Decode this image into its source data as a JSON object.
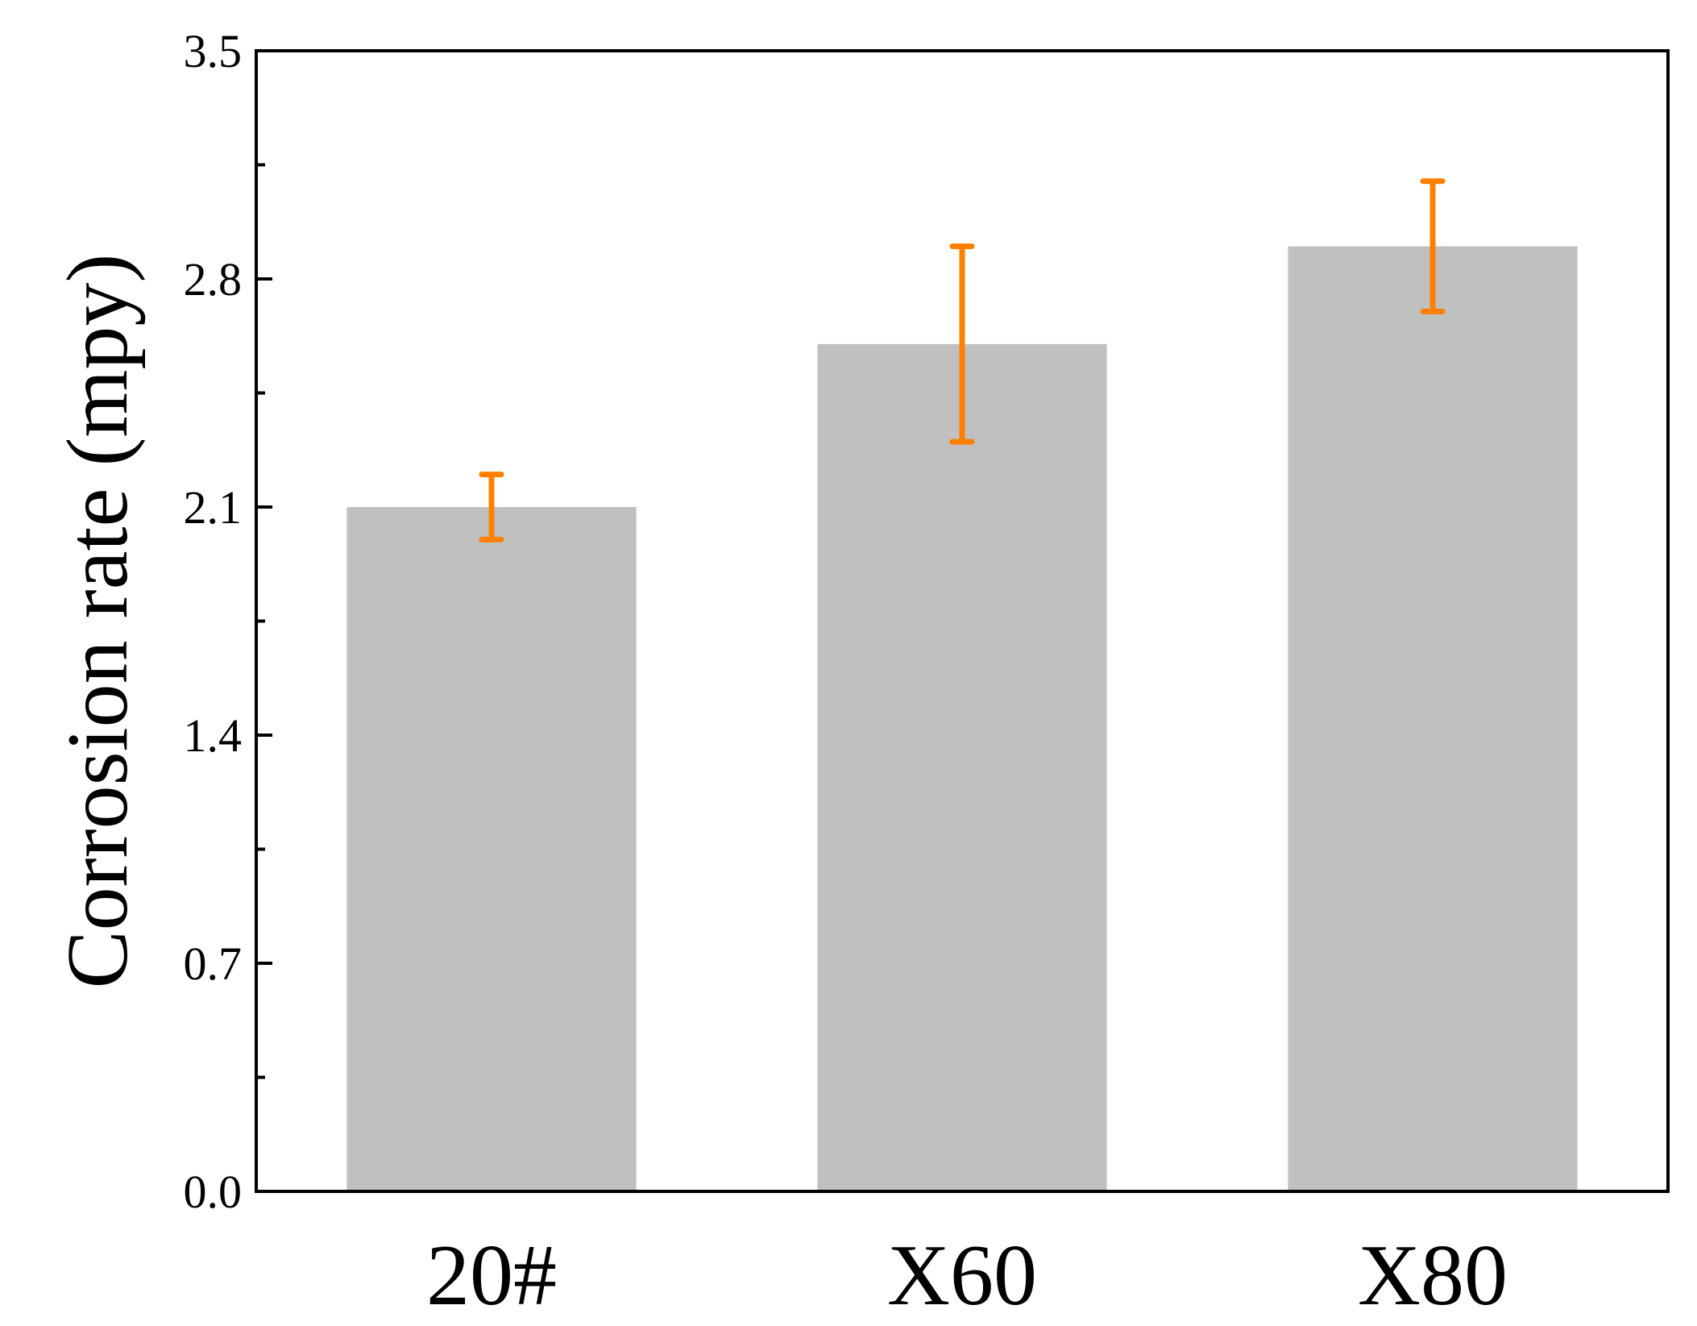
{
  "chart_data": {
    "type": "bar",
    "title": "",
    "xlabel": "",
    "ylabel": "Corrosion rate (mpy)",
    "categories": [
      "20#",
      "X60",
      "X80"
    ],
    "values": [
      2.1,
      2.6,
      2.9
    ],
    "error_low": [
      2.0,
      2.3,
      2.7
    ],
    "error_high": [
      2.2,
      2.9,
      3.1
    ],
    "ylim": [
      0.0,
      3.5
    ],
    "y_ticks": [
      "0.0",
      "0.7",
      "1.4",
      "2.1",
      "2.8",
      "3.5"
    ],
    "y_minor_ticks": [
      0.35,
      1.05,
      1.75,
      2.45,
      3.15
    ],
    "grid": false,
    "legend": "none",
    "colors": {
      "bar": "#c0c0c0",
      "error_bar": "#ff7f00",
      "axis": "#000000"
    }
  }
}
